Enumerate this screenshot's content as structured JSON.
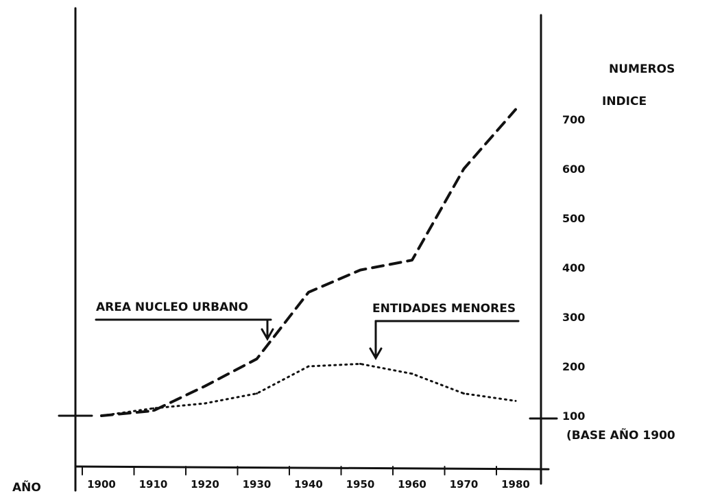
{
  "chart_data": {
    "type": "line",
    "title": "",
    "xlabel": "AÑO",
    "ylabel_line1": "NUMEROS",
    "ylabel_line2": "INDICE",
    "ylabel_note": "(BASE AÑO 1900",
    "categories": [
      "1900",
      "1910",
      "1920",
      "1930",
      "1940",
      "1950",
      "1960",
      "1970",
      "1980"
    ],
    "yticks": [
      "100",
      "200",
      "300",
      "400",
      "500",
      "600",
      "700"
    ],
    "ylim": [
      0,
      800
    ],
    "grid": false,
    "series": [
      {
        "name": "AREA NUCLEO URBANO",
        "style": "dashed",
        "x": [
          1900,
          1910,
          1920,
          1930,
          1940,
          1950,
          1960,
          1970,
          1980
        ],
        "values": [
          100,
          110,
          160,
          215,
          350,
          395,
          415,
          600,
          720
        ]
      },
      {
        "name": "ENTIDADES MENORES",
        "style": "dotted",
        "x": [
          1900,
          1910,
          1920,
          1930,
          1940,
          1950,
          1960,
          1970,
          1980
        ],
        "values": [
          100,
          115,
          125,
          145,
          200,
          205,
          185,
          145,
          130
        ]
      }
    ],
    "annotations": [
      {
        "text": "AREA NUCLEO URBANO",
        "x": 1932,
        "y": 245,
        "series": 0
      },
      {
        "text": "ENTIDADES MENORES",
        "x": 1953,
        "y": 205,
        "series": 1
      }
    ]
  }
}
